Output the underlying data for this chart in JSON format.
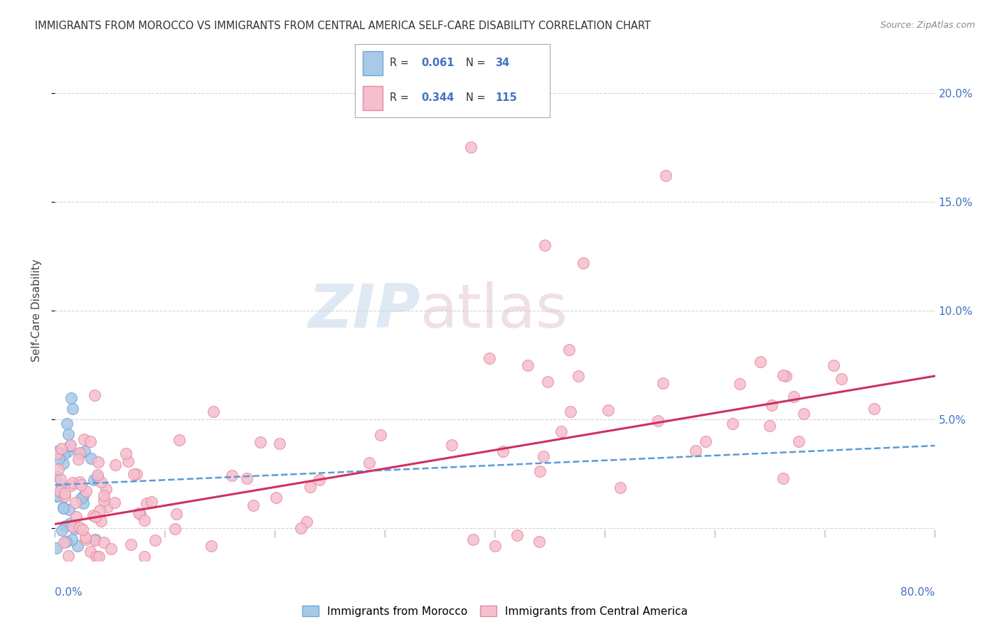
{
  "title": "IMMIGRANTS FROM MOROCCO VS IMMIGRANTS FROM CENTRAL AMERICA SELF-CARE DISABILITY CORRELATION CHART",
  "source": "Source: ZipAtlas.com",
  "ylabel": "Self-Care Disability",
  "xlim": [
    0.0,
    0.8
  ],
  "ylim": [
    -0.015,
    0.215
  ],
  "yticks": [
    0.0,
    0.05,
    0.1,
    0.15,
    0.2
  ],
  "ytick_labels": [
    "",
    "5.0%",
    "10.0%",
    "15.0%",
    "20.0%"
  ],
  "watermark_zip": "ZIP",
  "watermark_atlas": "atlas",
  "background_color": "#ffffff",
  "grid_color": "#cccccc",
  "morocco_color_face": "#aac8e8",
  "morocco_color_edge": "#6aaad4",
  "morocco_trendline_color": "#5b9bd5",
  "ca_color_face": "#f5bfcd",
  "ca_color_edge": "#e888a0",
  "ca_trendline_color": "#d03060",
  "r1_val": "0.061",
  "n1_val": "34",
  "r2_val": "0.344",
  "n2_val": "115",
  "label_morocco": "Immigrants from Morocco",
  "label_ca": "Immigrants from Central America",
  "title_fontsize": 10.5,
  "axis_label_fontsize": 11,
  "tick_fontsize": 11,
  "legend_value_color": "#4472c4",
  "legend_text_color": "#333333",
  "ca_trend_x0": 0.0,
  "ca_trend_y0": 0.002,
  "ca_trend_x1": 0.8,
  "ca_trend_y1": 0.07,
  "mor_trend_x0": 0.0,
  "mor_trend_y0": 0.02,
  "mor_trend_x1": 0.8,
  "mor_trend_y1": 0.038
}
